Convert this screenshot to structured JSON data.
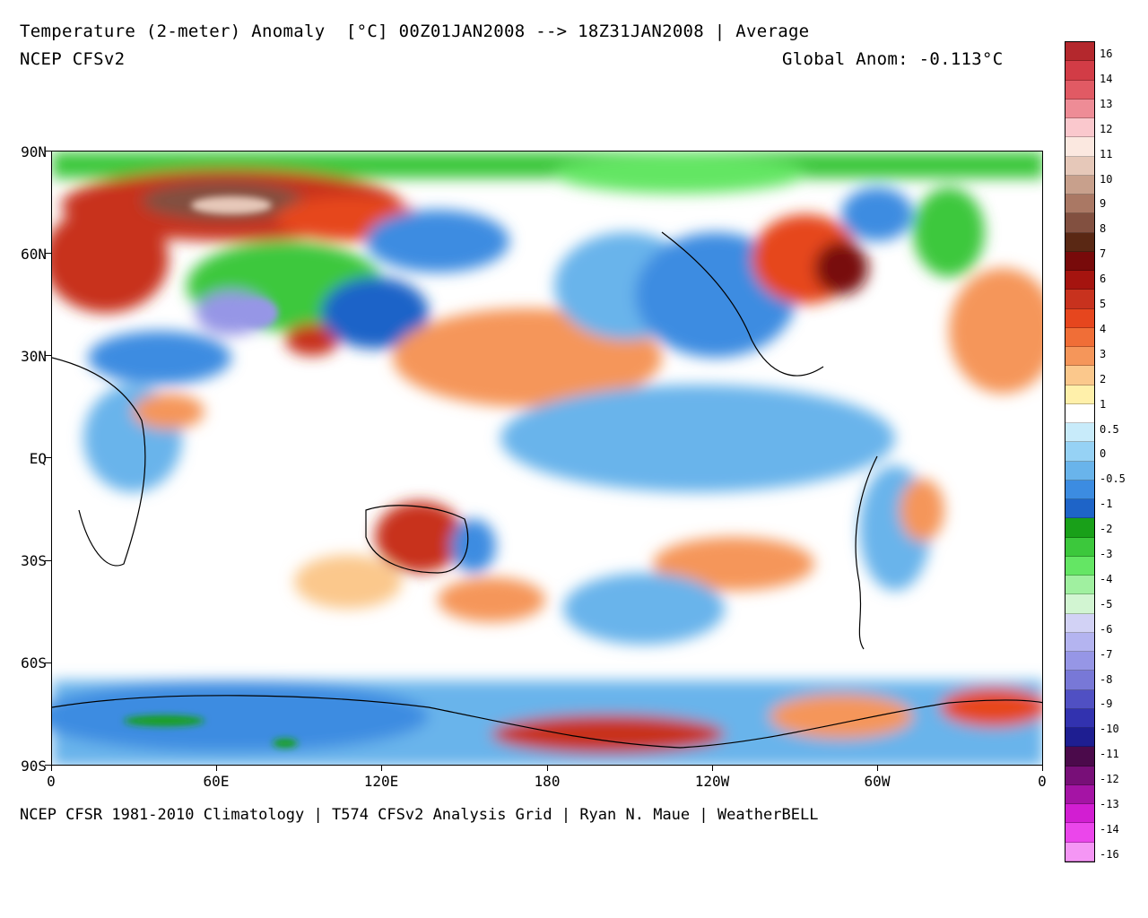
{
  "header": {
    "title": "Temperature (2-meter) Anomaly  [°C] 00Z01JAN2008 --> 18Z31JAN2008 | Average",
    "subtitle": "NCEP CFSv2",
    "global_anomaly": "Global Anom: -0.113°C"
  },
  "footer": "NCEP CFSR 1981-2010 Climatology | T574 CFSv2 Analysis Grid | Ryan N. Maue | WeatherBELL",
  "axes": {
    "lat_labels": [
      "90N",
      "60N",
      "30N",
      "EQ",
      "30S",
      "60S",
      "90S"
    ],
    "lon_labels": [
      "0",
      "60E",
      "120E",
      "180",
      "120W",
      "60W",
      "0"
    ]
  },
  "colorbar": {
    "labels": [
      "16",
      "14",
      "13",
      "12",
      "11",
      "10",
      "9",
      "8",
      "7",
      "6",
      "5",
      "4",
      "3",
      "2",
      "1",
      "0.5",
      "0",
      "-0.5",
      "-1",
      "-2",
      "-3",
      "-4",
      "-5",
      "-6",
      "-7",
      "-8",
      "-9",
      "-10",
      "-11",
      "-12",
      "-13",
      "-14",
      "-16"
    ],
    "colors": [
      "#b4282d",
      "#d23c46",
      "#e15a64",
      "#ee8c96",
      "#fac8cd",
      "#fbe8e0",
      "#e6c8b9",
      "#c8a08c",
      "#aa7864",
      "#825040",
      "#5a2814",
      "#780a0a",
      "#a5140f",
      "#c8321e",
      "#e6461e",
      "#f06e37",
      "#f5965a",
      "#fbc88c",
      "#fff0aa",
      "#ffffff",
      "#c8ebfa",
      "#96d2f5",
      "#69b4eb",
      "#3c8ce1",
      "#1e64c8",
      "#19a019",
      "#3cc83c",
      "#64e664",
      "#a0f0a0",
      "#d2f5d2",
      "#d2d2f5",
      "#b4b4f0",
      "#9696e6",
      "#7878d7",
      "#5050c3",
      "#3232af",
      "#1e1e91",
      "#4b0a4b",
      "#780f78",
      "#a514a5",
      "#d21ed2",
      "#eb46eb",
      "#f596f5"
    ]
  }
}
